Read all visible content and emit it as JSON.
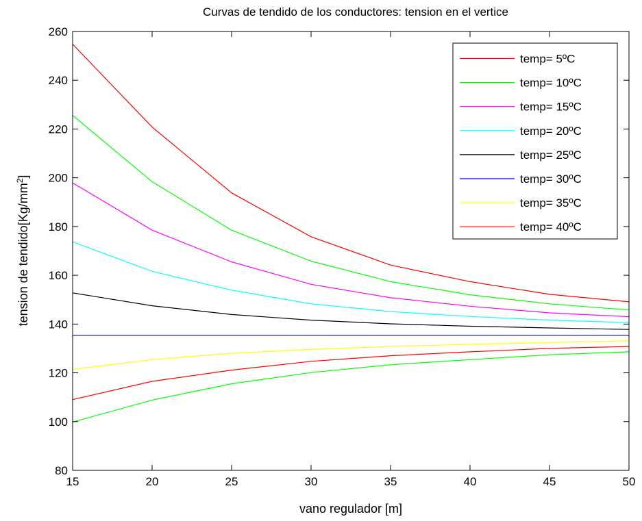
{
  "chart_data": {
    "type": "line",
    "title": "Curvas de tendido de los conductores: tension en el vertice",
    "xlabel": "vano regulador [m]",
    "ylabel": {
      "main": "tension de tendido[Kg/mm",
      "superscript": "2",
      "suffix": "]"
    },
    "xlim": [
      15,
      50
    ],
    "ylim": [
      80,
      260
    ],
    "xticks": [
      "15",
      "20",
      "25",
      "30",
      "35",
      "40",
      "45",
      "50"
    ],
    "yticks": [
      "80",
      "100",
      "120",
      "140",
      "160",
      "180",
      "200",
      "220",
      "240",
      "260"
    ],
    "grid": false,
    "legend_position": "top-right",
    "x": [
      15,
      20,
      25,
      30,
      35,
      40,
      45,
      50
    ],
    "series": [
      {
        "name": "temp= 5ºC",
        "color": "#ff0000",
        "values": [
          254.8,
          220.8,
          193.8,
          175.8,
          164.2,
          157.4,
          152.2,
          149.1
        ]
      },
      {
        "name": "temp= 10ºC",
        "color": "#00ff00",
        "values": [
          225.6,
          198.4,
          178.5,
          165.8,
          157.4,
          152.0,
          148.3,
          145.8
        ]
      },
      {
        "name": "temp= 15ºC",
        "color": "#ff00ff",
        "values": [
          197.9,
          178.5,
          165.5,
          156.3,
          150.8,
          147.3,
          144.6,
          143.0
        ]
      },
      {
        "name": "temp= 20ºC",
        "color": "#00ffff",
        "values": [
          173.7,
          161.6,
          153.9,
          148.3,
          145.1,
          143.1,
          141.6,
          140.6
        ]
      },
      {
        "name": "temp= 25ºC",
        "color": "#000000",
        "values": [
          152.8,
          147.5,
          143.9,
          141.6,
          140.1,
          139.1,
          138.4,
          137.8
        ]
      },
      {
        "name": "temp= 30ºC",
        "color": "#0000ff",
        "values": [
          135.4,
          135.4,
          135.4,
          135.4,
          135.4,
          135.4,
          135.4,
          135.4
        ]
      },
      {
        "name": "temp= 35ºC",
        "color": "#ffff00",
        "values": [
          121.4,
          125.4,
          128.0,
          129.6,
          130.8,
          131.7,
          132.4,
          133.1
        ]
      },
      {
        "name": "temp= 40ºC",
        "color": "#ff0000",
        "values": [
          109.0,
          116.5,
          121.1,
          124.7,
          127.0,
          128.6,
          130.0,
          130.8
        ]
      },
      {
        "name": "",
        "color": "#00ff00",
        "values": [
          99.8,
          108.8,
          115.5,
          120.1,
          123.3,
          125.4,
          127.4,
          128.6
        ]
      }
    ]
  }
}
